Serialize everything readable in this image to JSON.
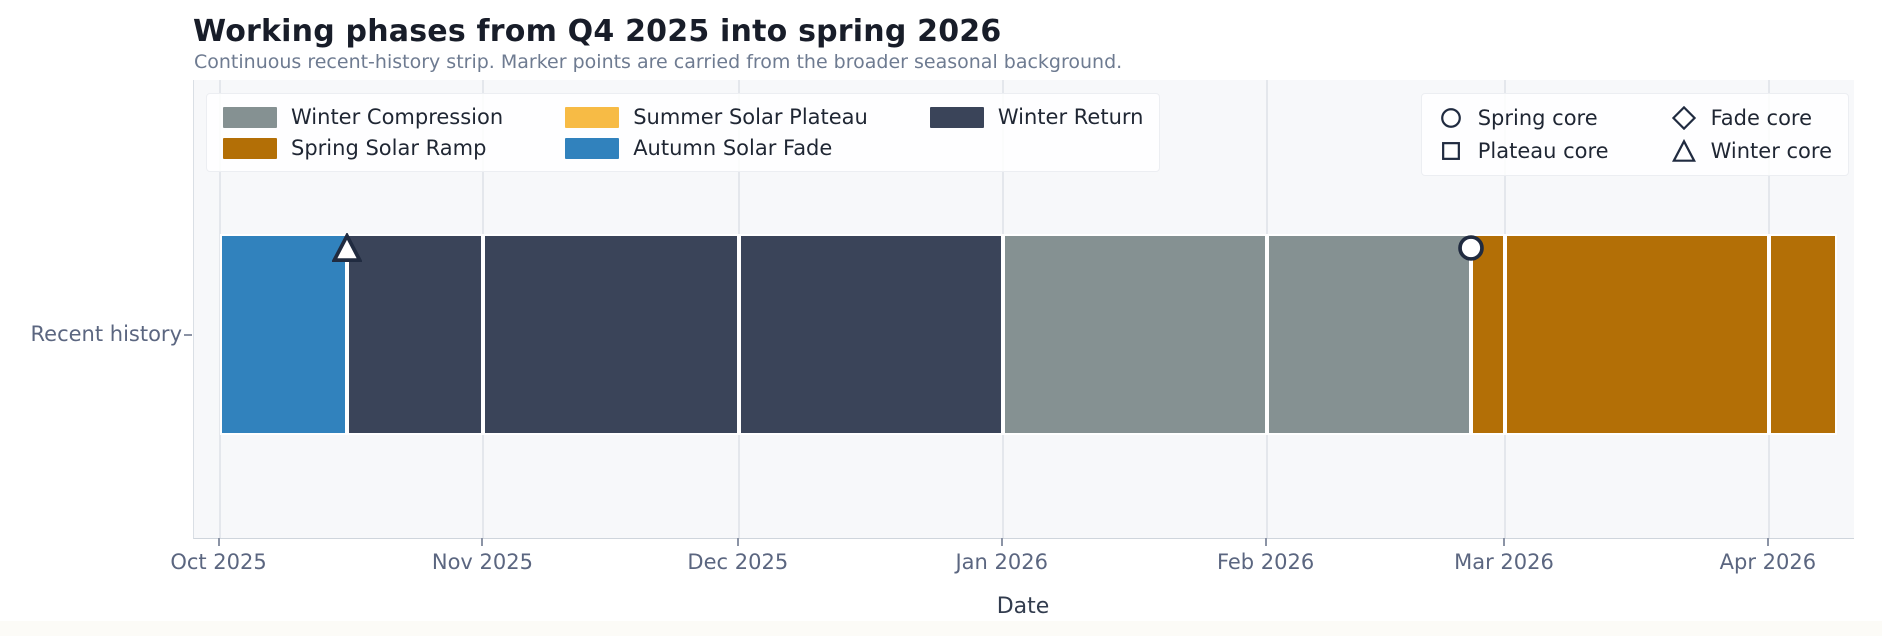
{
  "chart_data": {
    "type": "bar",
    "subtype": "horizontal-timeline-strip",
    "title": "Working phases from Q4 2025 into spring 2026",
    "subtitle": "Continuous recent-history strip. Marker points are carried from the broader seasonal background.",
    "xlabel": "Date",
    "row_label": "Recent history",
    "grid": true,
    "xlim": [
      "2025-09-28",
      "2026-04-11"
    ],
    "x_ticks": [
      {
        "date": "2025-10-01",
        "label": "Oct 2025"
      },
      {
        "date": "2025-11-01",
        "label": "Nov 2025"
      },
      {
        "date": "2025-12-01",
        "label": "Dec 2025"
      },
      {
        "date": "2026-01-01",
        "label": "Jan 2026"
      },
      {
        "date": "2026-02-01",
        "label": "Feb 2026"
      },
      {
        "date": "2026-03-01",
        "label": "Mar 2026"
      },
      {
        "date": "2026-04-01",
        "label": "Apr 2026"
      }
    ],
    "phase_legend": [
      {
        "label": "Winter Compression",
        "color": "#859192"
      },
      {
        "label": "Spring Solar Ramp",
        "color": "#b36f06"
      },
      {
        "label": "Summer Solar Plateau",
        "color": "#f7bb45"
      },
      {
        "label": "Autumn Solar Fade",
        "color": "#3182bd"
      },
      {
        "label": "Winter Return",
        "color": "#3a4459"
      }
    ],
    "segments": [
      {
        "phase": "Autumn Solar Fade",
        "start": "2025-10-01",
        "end": "2025-10-16"
      },
      {
        "phase": "Winter Return",
        "start": "2025-10-16",
        "end": "2025-11-01"
      },
      {
        "phase": "Winter Return",
        "start": "2025-11-01",
        "end": "2025-12-01"
      },
      {
        "phase": "Winter Return",
        "start": "2025-12-01",
        "end": "2026-01-01"
      },
      {
        "phase": "Winter Compression",
        "start": "2026-01-01",
        "end": "2026-02-01"
      },
      {
        "phase": "Winter Compression",
        "start": "2026-02-01",
        "end": "2026-02-25"
      },
      {
        "phase": "Spring Solar Ramp",
        "start": "2026-02-25",
        "end": "2026-03-01"
      },
      {
        "phase": "Spring Solar Ramp",
        "start": "2026-03-01",
        "end": "2026-04-01"
      },
      {
        "phase": "Spring Solar Ramp",
        "start": "2026-04-01",
        "end": "2026-04-09"
      }
    ],
    "markers": [
      {
        "shape": "triangle",
        "label": "Winter core",
        "date": "2025-10-16"
      },
      {
        "shape": "circle",
        "label": "Spring core",
        "date": "2026-02-25"
      }
    ],
    "marker_legend": [
      {
        "shape": "circle",
        "label": "Spring core"
      },
      {
        "shape": "square",
        "label": "Plateau core"
      },
      {
        "shape": "diamond",
        "label": "Fade core"
      },
      {
        "shape": "triangle",
        "label": "Winter core"
      }
    ],
    "marker_style": {
      "stroke": "#202b40",
      "fill": "#ffffff"
    }
  }
}
